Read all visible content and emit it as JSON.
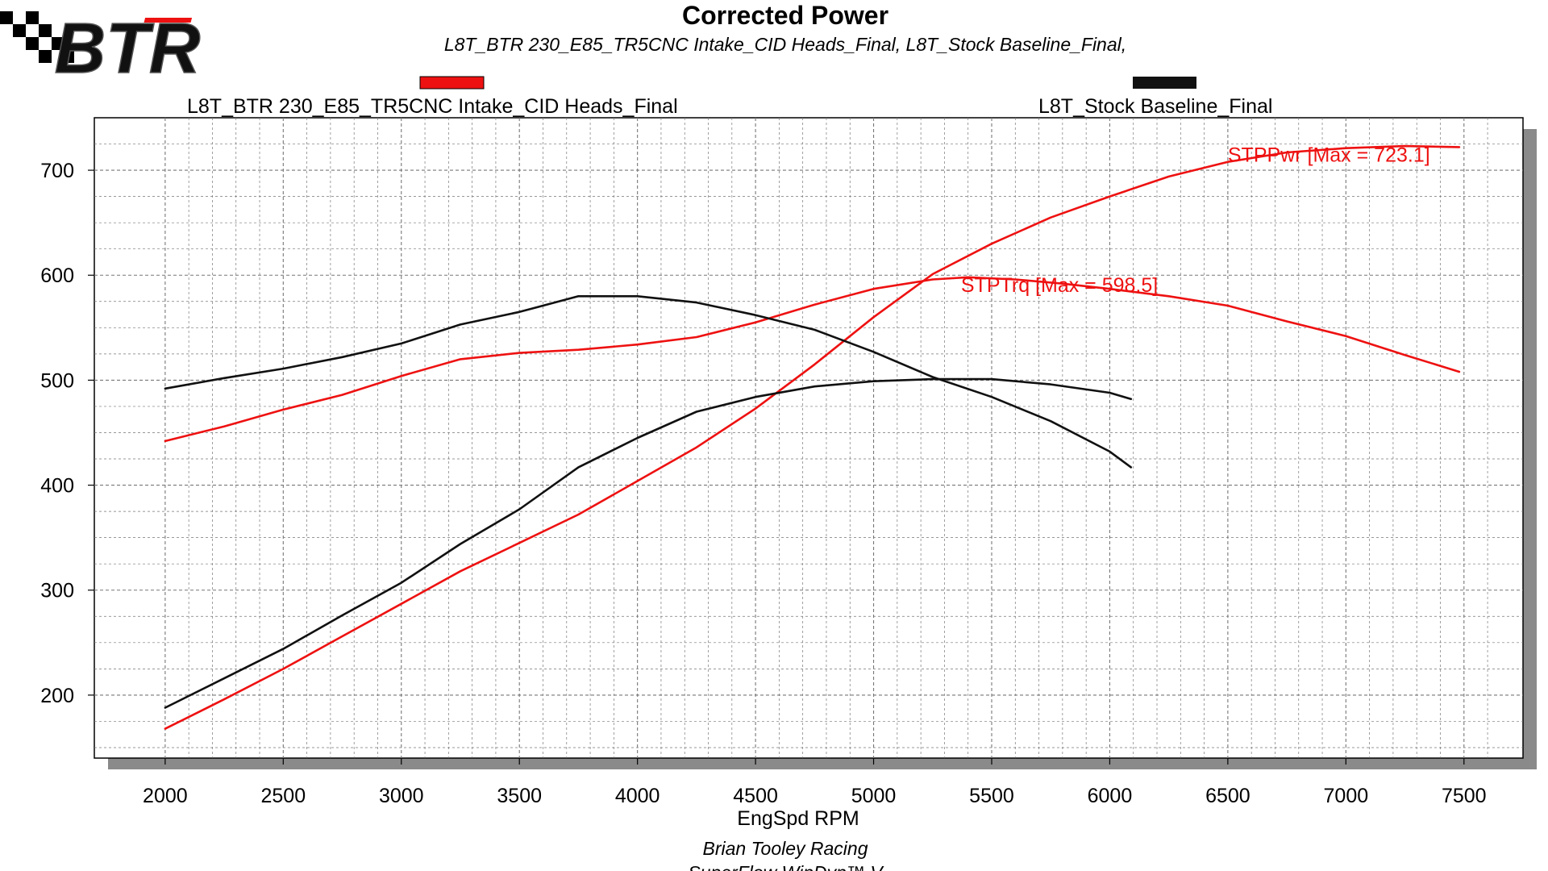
{
  "logo": {
    "text": "BTR"
  },
  "title": "Corrected Power",
  "subtitle": "L8T_BTR 230_E85_TR5CNC Intake_CID Heads_Final, L8T_Stock Baseline_Final,",
  "footer": {
    "line1": "Brian Tooley Racing",
    "line2": "SuperFlow WinDyn™ V"
  },
  "colors": {
    "series_red": "#ee1111",
    "series_black": "#111111",
    "grid": "#777777",
    "shadow": "#8a8a8a"
  },
  "chart_data": {
    "type": "line",
    "xlabel": "EngSpd RPM",
    "ylabel": "",
    "xlim": [
      1700,
      7750
    ],
    "ylim": [
      140,
      750
    ],
    "xticks": [
      2000,
      2500,
      3000,
      3500,
      4000,
      4500,
      5000,
      5500,
      6000,
      6500,
      7000,
      7500
    ],
    "yticks": [
      200,
      300,
      400,
      500,
      600,
      700
    ],
    "grid": true,
    "legend": [
      {
        "name": "L8T_BTR 230_E85_TR5CNC Intake_CID Heads_Final",
        "color": "#ee1111"
      },
      {
        "name": "L8T_Stock Baseline_Final",
        "color": "#111111"
      }
    ],
    "annotations": [
      {
        "text": "STPPwr [Max = 723.1]",
        "x": 5380,
        "y": 722,
        "color": "#ee1111"
      },
      {
        "text": "STPTrq [Max = 598.5]",
        "x": 5380,
        "y": 598,
        "color": "#ee1111"
      }
    ],
    "series": [
      {
        "run": "L8T_BTR 230_E85_TR5CNC Intake_CID Heads_Final",
        "quantity": "STPTrq",
        "color": "#ee1111",
        "x": [
          2000,
          2250,
          2500,
          2750,
          3000,
          3250,
          3500,
          3750,
          4000,
          4250,
          4500,
          4750,
          5000,
          5250,
          5400,
          5600,
          5800,
          6000,
          6250,
          6500,
          6750,
          7000,
          7250,
          7480
        ],
        "y": [
          442,
          456,
          472,
          486,
          504,
          520,
          526,
          529,
          534,
          541,
          555,
          572,
          587,
          596,
          598,
          596,
          592,
          587,
          580,
          571,
          556,
          542,
          524,
          508
        ]
      },
      {
        "run": "L8T_BTR 230_E85_TR5CNC Intake_CID Heads_Final",
        "quantity": "STPPwr",
        "color": "#ee1111",
        "x": [
          2000,
          2250,
          2500,
          2750,
          3000,
          3250,
          3500,
          3750,
          4000,
          4250,
          4500,
          4750,
          5000,
          5250,
          5500,
          5750,
          6000,
          6250,
          6500,
          6750,
          7000,
          7250,
          7480
        ],
        "y": [
          168,
          196,
          225,
          256,
          287,
          318,
          345,
          372,
          404,
          436,
          473,
          515,
          560,
          601,
          630,
          655,
          675,
          694,
          708,
          717,
          721,
          723,
          722
        ]
      },
      {
        "run": "L8T_Stock Baseline_Final",
        "quantity": "STPTrq",
        "color": "#111111",
        "x": [
          2000,
          2250,
          2500,
          2750,
          3000,
          3250,
          3500,
          3750,
          4000,
          4250,
          4500,
          4750,
          5000,
          5250,
          5500,
          5750,
          6000,
          6090
        ],
        "y": [
          492,
          502,
          511,
          522,
          535,
          553,
          565,
          580,
          580,
          574,
          562,
          548,
          527,
          503,
          484,
          461,
          432,
          417
        ]
      },
      {
        "run": "L8T_Stock Baseline_Final",
        "quantity": "STPPwr",
        "color": "#111111",
        "x": [
          2000,
          2250,
          2500,
          2750,
          3000,
          3250,
          3500,
          3750,
          4000,
          4250,
          4500,
          4750,
          5000,
          5250,
          5500,
          5750,
          6000,
          6090
        ],
        "y": [
          188,
          216,
          244,
          276,
          307,
          344,
          377,
          417,
          445,
          470,
          484,
          494,
          499,
          501,
          501,
          496,
          488,
          482
        ]
      }
    ]
  }
}
